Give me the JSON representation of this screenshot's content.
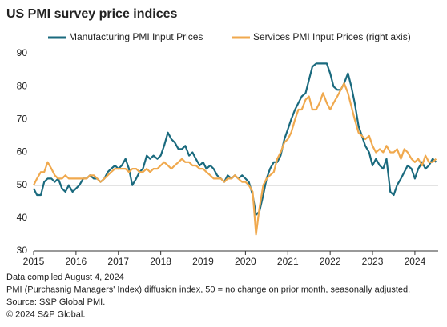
{
  "chart_data": {
    "type": "line",
    "title": "US PMI survey price indices",
    "x": [
      2015.0,
      2015.08,
      2015.17,
      2015.25,
      2015.33,
      2015.42,
      2015.5,
      2015.58,
      2015.67,
      2015.75,
      2015.83,
      2015.92,
      2016.0,
      2016.08,
      2016.17,
      2016.25,
      2016.33,
      2016.42,
      2016.5,
      2016.58,
      2016.67,
      2016.75,
      2016.83,
      2016.92,
      2017.0,
      2017.08,
      2017.17,
      2017.25,
      2017.33,
      2017.42,
      2017.5,
      2017.58,
      2017.67,
      2017.75,
      2017.83,
      2017.92,
      2018.0,
      2018.08,
      2018.17,
      2018.25,
      2018.33,
      2018.42,
      2018.5,
      2018.58,
      2018.67,
      2018.75,
      2018.83,
      2018.92,
      2019.0,
      2019.08,
      2019.17,
      2019.25,
      2019.33,
      2019.42,
      2019.5,
      2019.58,
      2019.67,
      2019.75,
      2019.83,
      2019.92,
      2020.0,
      2020.08,
      2020.17,
      2020.25,
      2020.33,
      2020.42,
      2020.5,
      2020.58,
      2020.67,
      2020.75,
      2020.83,
      2020.92,
      2021.0,
      2021.08,
      2021.17,
      2021.25,
      2021.33,
      2021.42,
      2021.5,
      2021.58,
      2021.67,
      2021.75,
      2021.83,
      2021.92,
      2022.0,
      2022.08,
      2022.17,
      2022.25,
      2022.33,
      2022.42,
      2022.5,
      2022.58,
      2022.67,
      2022.75,
      2022.83,
      2022.92,
      2023.0,
      2023.08,
      2023.17,
      2023.25,
      2023.33,
      2023.42,
      2023.5,
      2023.58,
      2023.67,
      2023.75,
      2023.83,
      2023.92,
      2024.0,
      2024.08,
      2024.17,
      2024.25,
      2024.33,
      2024.42,
      2024.5
    ],
    "series": [
      {
        "name": "Manufacturing PMI Input Prices",
        "color": "#1a6a7e",
        "values": [
          49,
          47,
          47,
          51,
          52,
          52,
          51,
          52,
          49,
          48,
          50,
          48,
          49,
          50,
          52,
          52,
          53,
          52,
          52,
          51,
          52,
          54,
          55,
          56,
          55,
          56,
          58,
          55,
          50,
          52,
          54,
          55,
          59,
          58,
          59,
          58,
          59,
          62,
          66,
          64,
          63,
          61,
          61,
          62,
          59,
          60,
          58,
          56,
          57,
          55,
          56,
          55,
          53,
          52,
          51,
          53,
          52,
          53,
          52,
          53,
          52,
          51,
          47,
          41,
          42,
          47,
          52,
          55,
          57,
          57,
          59,
          64,
          67,
          70,
          73,
          75,
          77,
          78,
          82,
          86,
          87,
          87,
          87,
          87,
          84,
          80,
          79,
          79,
          81,
          84,
          80,
          75,
          68,
          65,
          62,
          60,
          56,
          58,
          56,
          55,
          58,
          48,
          47,
          50,
          52,
          54,
          56,
          55,
          52,
          55,
          57,
          55,
          56,
          58,
          57
        ]
      },
      {
        "name": "Services PMI Input Prices (right axis)",
        "color": "#f0a94e",
        "values": [
          50,
          52,
          54,
          54,
          57,
          55,
          53,
          52,
          52,
          53,
          52,
          52,
          52,
          52,
          52,
          52,
          53,
          53,
          52,
          51,
          52,
          53,
          54,
          55,
          55,
          55,
          55,
          54,
          55,
          55,
          54,
          54,
          55,
          54,
          55,
          55,
          56,
          57,
          56,
          55,
          56,
          57,
          58,
          57,
          57,
          56,
          56,
          55,
          55,
          54,
          53,
          52,
          52,
          52,
          51,
          52,
          52,
          53,
          52,
          51,
          51,
          50,
          48,
          35,
          43,
          50,
          52,
          53,
          54,
          58,
          60,
          63,
          64,
          66,
          70,
          73,
          73,
          76,
          77,
          73,
          73,
          75,
          78,
          75,
          73,
          75,
          77,
          79,
          81,
          78,
          74,
          70,
          66,
          65,
          64,
          65,
          62,
          60,
          61,
          60,
          62,
          60,
          60,
          61,
          58,
          61,
          60,
          58,
          57,
          58,
          56,
          59,
          57,
          57,
          58
        ]
      }
    ],
    "xlim": [
      2015,
      2024.55
    ],
    "xticks": [
      2015,
      2016,
      2017,
      2018,
      2019,
      2020,
      2021,
      2022,
      2023,
      2024
    ],
    "ylim": [
      30,
      90
    ],
    "yticks": [
      30,
      40,
      50,
      60,
      70,
      80,
      90
    ],
    "reference_line": 50,
    "grid": false,
    "legend": "top",
    "notes": [
      "Data compiled August 4, 2024",
      "PMI (Purchasnig Managers' Index) diffusion index, 50 = no change on prior month, seasonally adjusted.",
      "Source: S&P Global PMI.",
      "© 2024 S&P Global."
    ]
  }
}
